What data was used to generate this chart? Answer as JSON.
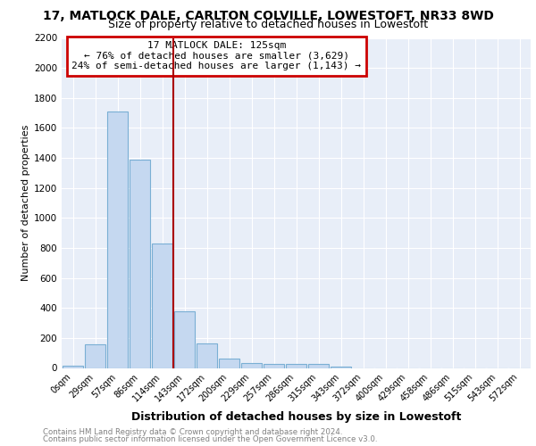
{
  "title1": "17, MATLOCK DALE, CARLTON COLVILLE, LOWESTOFT, NR33 8WD",
  "title2": "Size of property relative to detached houses in Lowestoft",
  "xlabel": "Distribution of detached houses by size in Lowestoft",
  "ylabel": "Number of detached properties",
  "categories": [
    "0sqm",
    "29sqm",
    "57sqm",
    "86sqm",
    "114sqm",
    "143sqm",
    "172sqm",
    "200sqm",
    "229sqm",
    "257sqm",
    "286sqm",
    "315sqm",
    "343sqm",
    "372sqm",
    "400sqm",
    "429sqm",
    "458sqm",
    "486sqm",
    "515sqm",
    "543sqm",
    "572sqm"
  ],
  "values": [
    15,
    155,
    1710,
    1390,
    830,
    380,
    165,
    65,
    35,
    25,
    25,
    25,
    10,
    0,
    0,
    0,
    0,
    0,
    0,
    0,
    0
  ],
  "bar_color": "#c5d8f0",
  "bar_edgecolor": "#7aafd4",
  "vline_x": 4.5,
  "vline_color": "#aa0000",
  "annotation_title": "17 MATLOCK DALE: 125sqm",
  "annotation_line1": "← 76% of detached houses are smaller (3,629)",
  "annotation_line2": "24% of semi-detached houses are larger (1,143) →",
  "annotation_box_edgecolor": "#cc0000",
  "ylim": [
    0,
    2200
  ],
  "yticks": [
    0,
    200,
    400,
    600,
    800,
    1000,
    1200,
    1400,
    1600,
    1800,
    2000,
    2200
  ],
  "footer1": "Contains HM Land Registry data © Crown copyright and database right 2024.",
  "footer2": "Contains public sector information licensed under the Open Government Licence v3.0.",
  "plot_bg_color": "#e8eef8",
  "grid_color": "#ffffff",
  "title1_fontsize": 10,
  "title2_fontsize": 9,
  "xlabel_fontsize": 9,
  "ylabel_fontsize": 8
}
